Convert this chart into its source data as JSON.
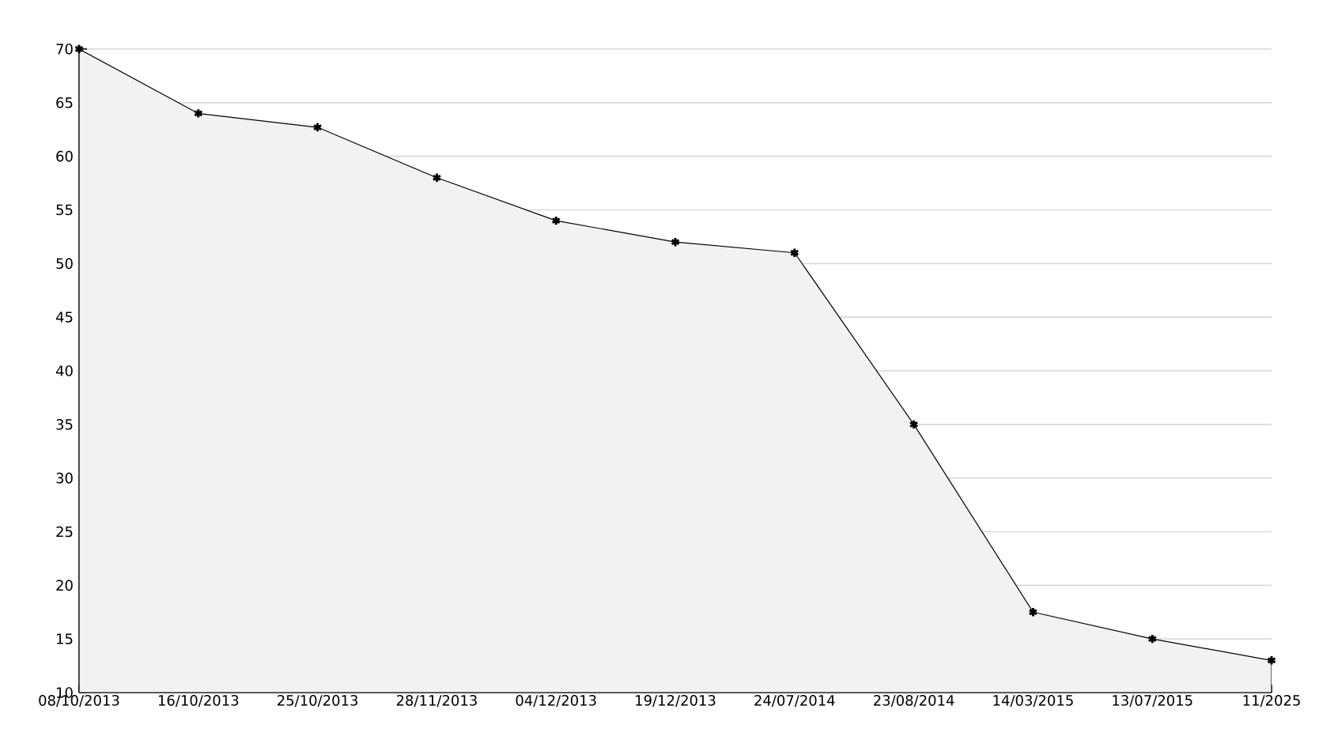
{
  "chart_data": {
    "type": "area",
    "categories": [
      "08/10/2013",
      "16/10/2013",
      "25/10/2013",
      "28/11/2013",
      "04/12/2013",
      "19/12/2013",
      "24/07/2014",
      "23/08/2014",
      "14/03/2015",
      "13/07/2015",
      "11/2025"
    ],
    "values": [
      70,
      64,
      62.7,
      58,
      54,
      52,
      51,
      35,
      17.5,
      15,
      13
    ],
    "color": "#000000",
    "ylim": [
      10,
      70
    ],
    "yticks": [
      10,
      15,
      20,
      25,
      30,
      35,
      40,
      45,
      50,
      55,
      60,
      65,
      70
    ],
    "grid": "y",
    "marker": "cross",
    "line_style": "solid"
  }
}
